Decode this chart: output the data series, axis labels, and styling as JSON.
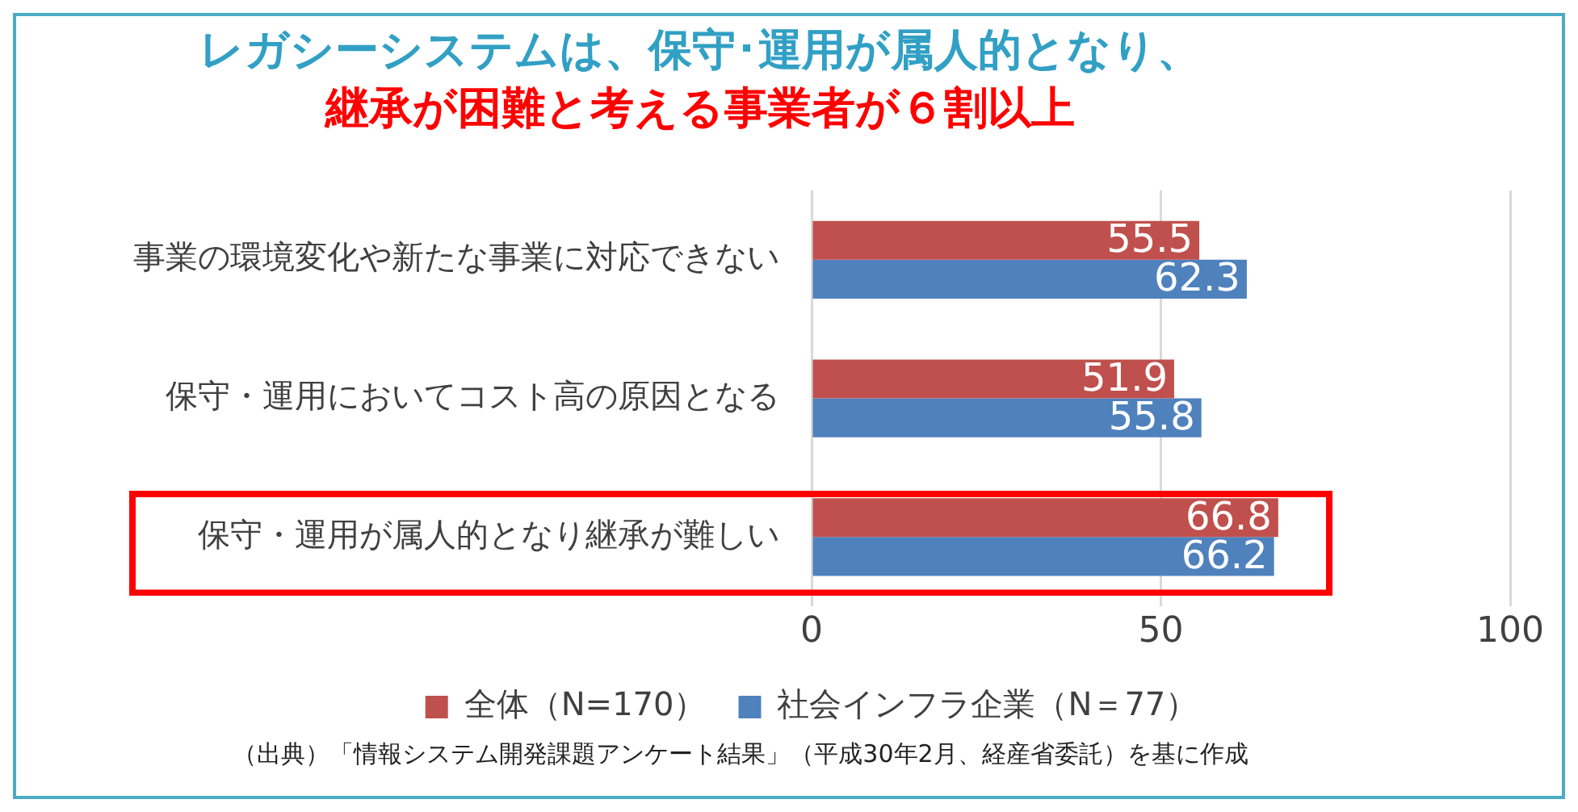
{
  "chart_data": {
    "type": "bar",
    "orientation": "horizontal",
    "title": "レガシーシステムは、保守･運用が属人的となり、",
    "subtitle": "継承が困難と考える事業者が６割以上",
    "categories": [
      "事業の環境変化や新たな事業に対応できない",
      "保守・運用においてコスト高の原因となる",
      "保守・運用が属人的となり継承が難しい"
    ],
    "series": [
      {
        "name": "全体（N=170）",
        "color": "#c0504d",
        "values": [
          55.5,
          51.9,
          66.8
        ]
      },
      {
        "name": "社会インフラ企業（N＝77）",
        "color": "#4f81bd",
        "values": [
          62.3,
          55.8,
          66.2
        ]
      }
    ],
    "xlim": [
      0,
      100
    ],
    "xticks": [
      0,
      50,
      100
    ],
    "grid": "x",
    "legend": "bottom",
    "data_labels": true,
    "annotations": [
      "（出典）「情報システム開発課題アンケート結果」（平成30年2月、経産省委託）を基に作成"
    ]
  }
}
